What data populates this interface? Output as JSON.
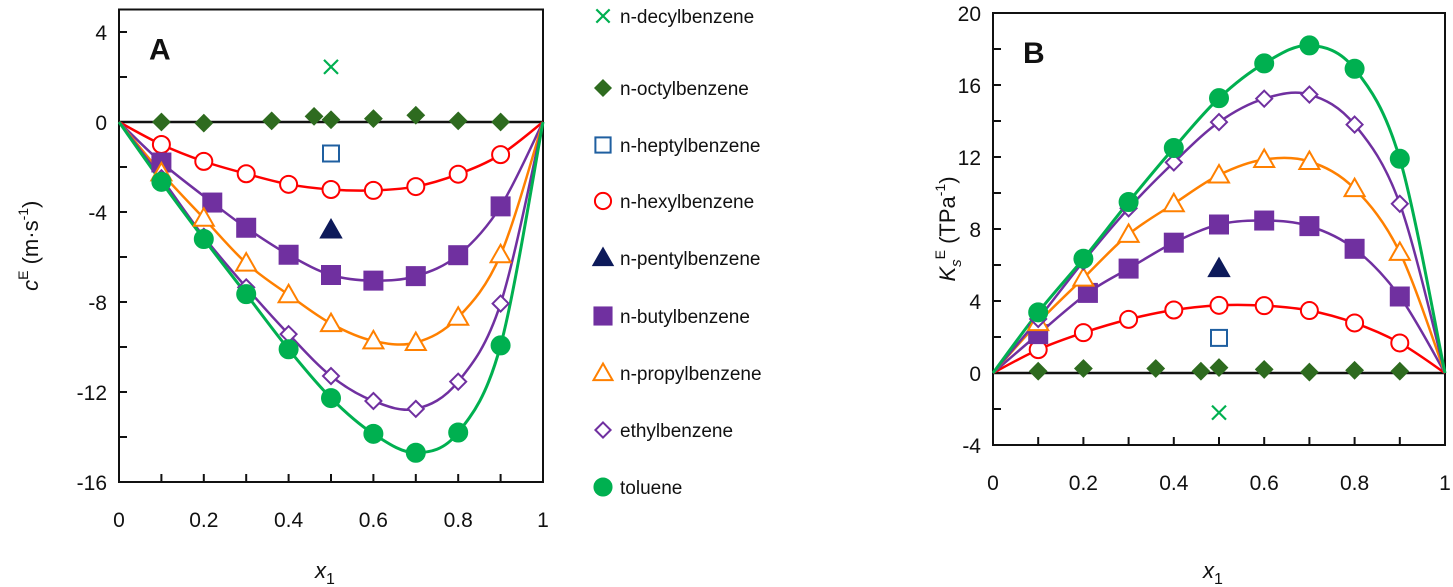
{
  "chart_data": [
    {
      "type": "line",
      "panel_label": "A",
      "xlabel": "x",
      "xlabel_sub": "1",
      "ylabel": {
        "main": "c",
        "sup": "E",
        "unit": " (m·s",
        "unit_sup": "-1",
        "close": ")"
      },
      "xlim": [
        0,
        1
      ],
      "ylim": [
        -16,
        5
      ],
      "xticks": [
        "0",
        "0.2",
        "0.4",
        "0.6",
        "0.8",
        "1"
      ],
      "yticks": [
        "4",
        "0",
        "-4",
        "-8",
        "-12",
        "-16"
      ],
      "ytick_values": [
        4,
        0,
        -4,
        -8,
        -12,
        -16
      ],
      "series": [
        {
          "name": "n-decylbenzene",
          "x": [
            0.5
          ],
          "y": [
            2.45
          ],
          "curve": false
        },
        {
          "name": "n-octylbenzene",
          "x": [
            0.1,
            0.2,
            0.36,
            0.46,
            0.5,
            0.6,
            0.7,
            0.8,
            0.9
          ],
          "y": [
            0.0,
            -0.05,
            0.05,
            0.25,
            0.1,
            0.15,
            0.3,
            0.05,
            0.0
          ],
          "curve": false
        },
        {
          "name": "n-heptylbenzene",
          "x": [
            0.5
          ],
          "y": [
            -1.4
          ],
          "curve": false
        },
        {
          "name": "n-hexylbenzene",
          "x": [
            0.1,
            0.2,
            0.3,
            0.4,
            0.5,
            0.6,
            0.7,
            0.8,
            0.9
          ],
          "y": [
            -1.0,
            -1.75,
            -2.3,
            -2.77,
            -3.0,
            -3.04,
            -2.87,
            -2.32,
            -1.45
          ],
          "curve": true
        },
        {
          "name": "n-pentylbenzene",
          "x": [
            0.5
          ],
          "y": [
            -4.8
          ],
          "curve": false
        },
        {
          "name": "n-butylbenzene",
          "x": [
            0.1,
            0.22,
            0.3,
            0.4,
            0.5,
            0.6,
            0.7,
            0.8,
            0.9
          ],
          "y": [
            -1.8,
            -3.58,
            -4.7,
            -5.9,
            -6.8,
            -7.05,
            -6.85,
            -5.92,
            -3.75
          ],
          "curve": true
        },
        {
          "name": "n-propylbenzene",
          "x": [
            0.1,
            0.2,
            0.3,
            0.4,
            0.5,
            0.6,
            0.7,
            0.8,
            0.9
          ],
          "y": [
            -2.26,
            -4.28,
            -6.27,
            -7.68,
            -8.96,
            -9.73,
            -9.8,
            -8.68,
            -5.9
          ],
          "curve": true
        },
        {
          "name": "ethylbenzene",
          "x": [
            0.1,
            0.2,
            0.3,
            0.4,
            0.5,
            0.6,
            0.7,
            0.8,
            0.9
          ],
          "y": [
            -2.5,
            -5.1,
            -7.35,
            -9.43,
            -11.29,
            -12.4,
            -12.75,
            -11.54,
            -8.07
          ],
          "curve": true
        },
        {
          "name": "toluene",
          "x": [
            0.1,
            0.2,
            0.3,
            0.4,
            0.5,
            0.6,
            0.7,
            0.8,
            0.9
          ],
          "y": [
            -2.66,
            -5.2,
            -7.65,
            -10.1,
            -12.27,
            -13.86,
            -14.7,
            -13.8,
            -9.93
          ],
          "curve": true
        }
      ]
    },
    {
      "type": "line",
      "panel_label": "B",
      "xlabel": "x",
      "xlabel_sub": "1",
      "ylabel": {
        "main": "K",
        "sub": "s",
        "sup": "E",
        "unit": " (TPa",
        "unit_sup": "-1",
        "close": ")"
      },
      "xlim": [
        0,
        1
      ],
      "ylim": [
        -4,
        20
      ],
      "xticks": [
        "0",
        "0.2",
        "0.4",
        "0.6",
        "0.8",
        "1"
      ],
      "yticks": [
        "20",
        "16",
        "12",
        "8",
        "4",
        "0",
        "-4"
      ],
      "ytick_values": [
        20,
        16,
        12,
        8,
        4,
        0,
        -4
      ],
      "series": [
        {
          "name": "n-decylbenzene",
          "x": [
            0.5
          ],
          "y": [
            -2.2
          ],
          "curve": false
        },
        {
          "name": "n-octylbenzene",
          "x": [
            0.1,
            0.2,
            0.36,
            0.46,
            0.5,
            0.6,
            0.7,
            0.8,
            0.9
          ],
          "y": [
            0.1,
            0.25,
            0.25,
            0.1,
            0.3,
            0.2,
            0.05,
            0.15,
            0.1
          ],
          "curve": false
        },
        {
          "name": "n-heptylbenzene",
          "x": [
            0.5
          ],
          "y": [
            1.95
          ],
          "curve": false
        },
        {
          "name": "n-hexylbenzene",
          "x": [
            0.1,
            0.2,
            0.3,
            0.4,
            0.5,
            0.6,
            0.7,
            0.8,
            0.9
          ],
          "y": [
            1.3,
            2.24,
            2.98,
            3.5,
            3.76,
            3.74,
            3.47,
            2.78,
            1.67
          ],
          "curve": true
        },
        {
          "name": "n-pentylbenzene",
          "x": [
            0.5
          ],
          "y": [
            5.8
          ],
          "curve": false
        },
        {
          "name": "n-butylbenzene",
          "x": [
            0.1,
            0.21,
            0.3,
            0.4,
            0.5,
            0.6,
            0.7,
            0.8,
            0.9
          ],
          "y": [
            2.16,
            4.45,
            5.8,
            7.24,
            8.25,
            8.47,
            8.16,
            6.9,
            4.25
          ],
          "curve": true
        },
        {
          "name": "n-propylbenzene",
          "x": [
            0.1,
            0.2,
            0.3,
            0.4,
            0.5,
            0.6,
            0.7,
            0.8,
            0.9
          ],
          "y": [
            2.8,
            5.27,
            7.7,
            9.4,
            11.0,
            11.86,
            11.75,
            10.24,
            6.7
          ],
          "curve": true
        },
        {
          "name": "ethylbenzene",
          "x": [
            0.1,
            0.2,
            0.3,
            0.4,
            0.5,
            0.6,
            0.7,
            0.8,
            0.9
          ],
          "y": [
            3.0,
            6.2,
            9.15,
            11.7,
            13.94,
            15.24,
            15.47,
            13.8,
            9.4
          ],
          "curve": true
        },
        {
          "name": "toluene",
          "x": [
            0.1,
            0.2,
            0.3,
            0.4,
            0.5,
            0.6,
            0.7,
            0.8,
            0.9
          ],
          "y": [
            3.37,
            6.35,
            9.5,
            12.5,
            15.27,
            17.2,
            18.2,
            16.9,
            11.9
          ],
          "curve": true
        }
      ]
    }
  ],
  "legend": [
    {
      "label": "n-decylbenzene",
      "marker": "cross",
      "color": "#00b050",
      "filled": false
    },
    {
      "label": "n-octylbenzene",
      "marker": "diamond",
      "color": "#2e6b1f",
      "filled": true
    },
    {
      "label": "n-heptylbenzene",
      "marker": "square",
      "color": "#1f5fa0",
      "filled": false
    },
    {
      "label": "n-hexylbenzene",
      "marker": "circle",
      "color": "#ff0000",
      "filled": false
    },
    {
      "label": "n-pentylbenzene",
      "marker": "triangle",
      "color": "#0d1a5a",
      "filled": true
    },
    {
      "label": "n-butylbenzene",
      "marker": "square",
      "color": "#7030a0",
      "filled": true
    },
    {
      "label": "n-propylbenzene",
      "marker": "triangle",
      "color": "#ff8000",
      "filled": false
    },
    {
      "label": "ethylbenzene",
      "marker": "diamond",
      "color": "#7030a0",
      "filled": false
    },
    {
      "label": "toluene",
      "marker": "circle",
      "color": "#00b050",
      "filled": true
    }
  ]
}
